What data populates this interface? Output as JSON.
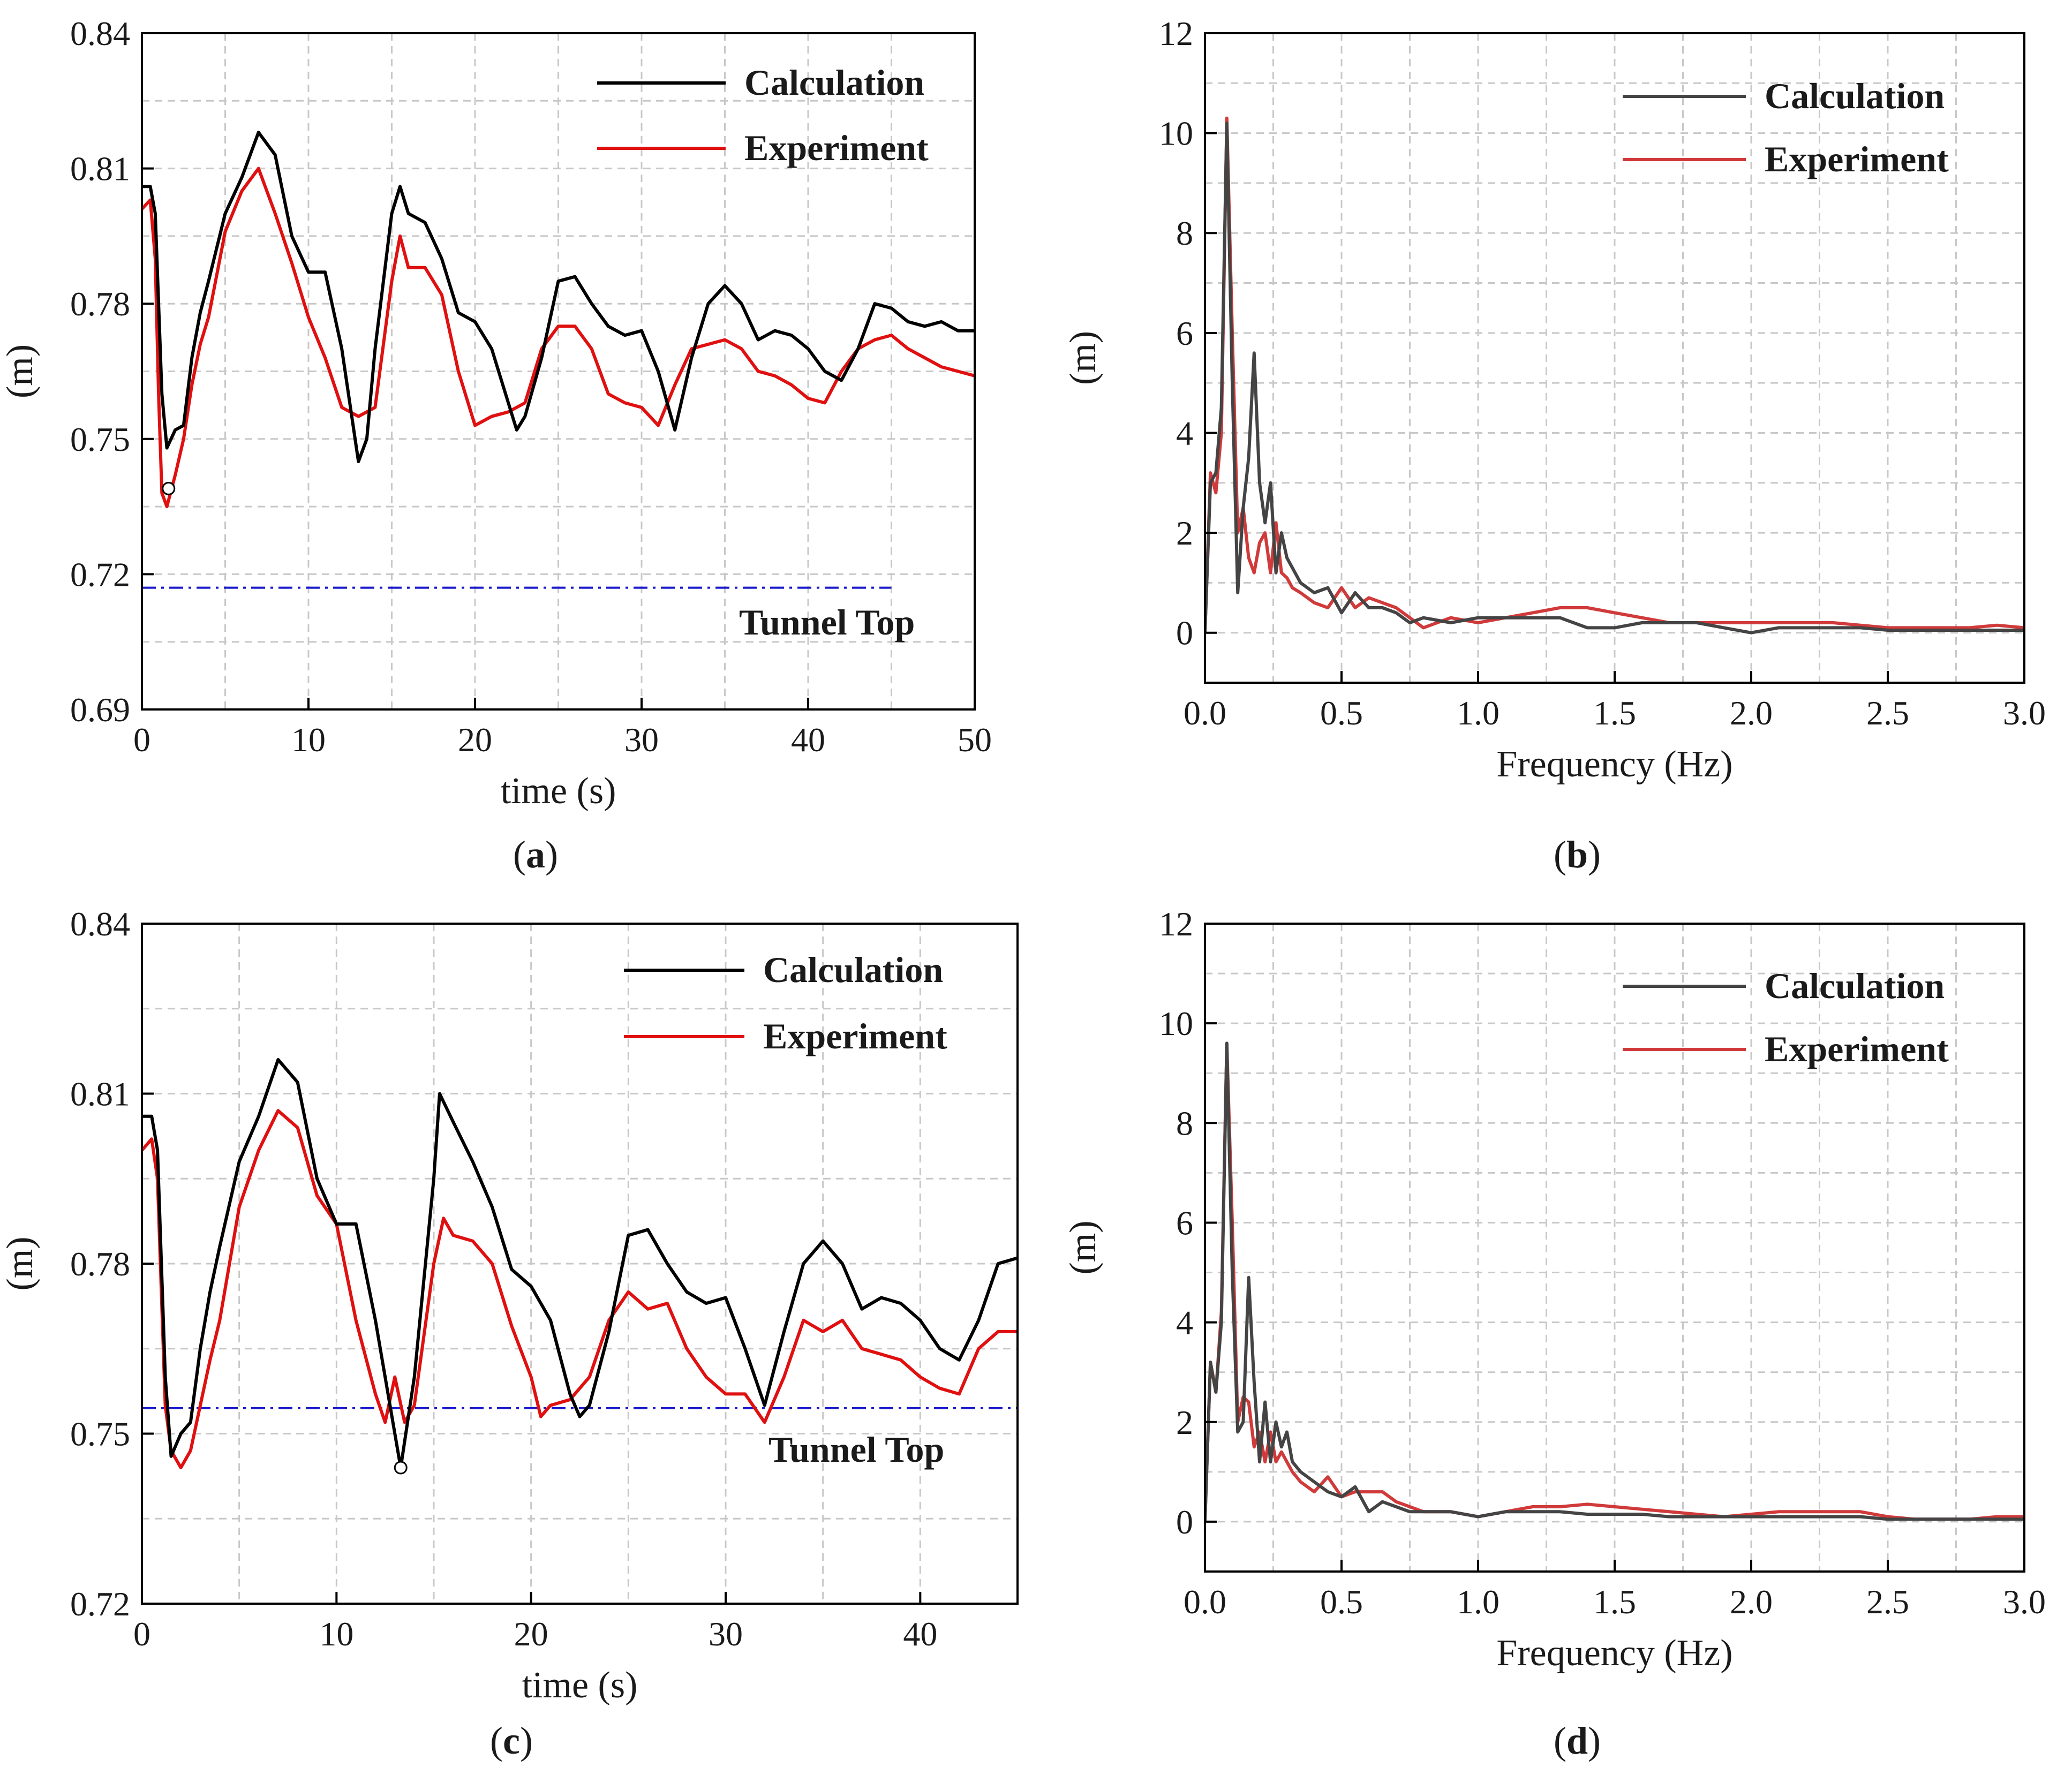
{
  "chart_data": [
    {
      "panel": "a",
      "type": "line",
      "caption_label": "a",
      "xlabel": "time (s)",
      "ylabel": "(m)",
      "xlim": [
        0,
        50
      ],
      "ylim": [
        0.69,
        0.84
      ],
      "xticks": [
        0,
        10,
        20,
        30,
        40,
        50
      ],
      "yticks": [
        0.69,
        0.72,
        0.75,
        0.78,
        0.81,
        0.84
      ],
      "ytick_labels": [
        "0.69",
        "0.72",
        "0.75",
        "0.78",
        "0.81",
        "0.84"
      ],
      "grid": true,
      "legend_position": "top-right",
      "annotation": {
        "text": "Tunnel Top",
        "y": 0.717,
        "x_range": [
          0,
          45
        ],
        "color": "#1a1acc"
      },
      "marker": {
        "x": 1.6,
        "y": 0.739
      },
      "series": [
        {
          "name": "Calculation",
          "color": "#000000",
          "x": [
            0,
            0.5,
            0.8,
            1.2,
            1.5,
            2,
            2.5,
            3,
            3.5,
            4,
            5,
            6,
            7,
            8,
            9,
            10,
            11,
            12,
            13,
            13.5,
            14,
            15,
            15.5,
            16,
            17,
            18,
            19,
            20,
            21,
            22,
            22.5,
            23,
            24,
            25,
            26,
            27,
            28,
            29,
            30,
            31,
            32,
            33,
            34,
            35,
            36,
            37,
            38,
            39,
            40,
            41,
            42,
            43,
            44,
            45,
            46,
            47,
            48,
            49,
            50
          ],
          "y": [
            0.806,
            0.806,
            0.8,
            0.76,
            0.748,
            0.752,
            0.753,
            0.768,
            0.778,
            0.785,
            0.8,
            0.808,
            0.818,
            0.813,
            0.795,
            0.787,
            0.787,
            0.77,
            0.745,
            0.75,
            0.77,
            0.8,
            0.806,
            0.8,
            0.798,
            0.79,
            0.778,
            0.776,
            0.77,
            0.758,
            0.752,
            0.755,
            0.768,
            0.785,
            0.786,
            0.78,
            0.775,
            0.773,
            0.774,
            0.765,
            0.752,
            0.768,
            0.78,
            0.784,
            0.78,
            0.772,
            0.774,
            0.773,
            0.77,
            0.765,
            0.763,
            0.77,
            0.78,
            0.779,
            0.776,
            0.775,
            0.776,
            0.774,
            0.774
          ]
        },
        {
          "name": "Experiment",
          "color": "#e01010",
          "x": [
            0,
            0.5,
            0.8,
            1,
            1.2,
            1.5,
            2,
            2.5,
            3,
            3.5,
            4,
            5,
            6,
            7,
            8,
            9,
            10,
            11,
            12,
            13,
            14,
            15,
            15.5,
            16,
            17,
            18,
            19,
            20,
            21,
            22,
            23,
            24,
            25,
            26,
            27,
            28,
            29,
            30,
            31,
            32,
            33,
            34,
            35,
            36,
            37,
            38,
            39,
            40,
            41,
            42,
            43,
            44,
            45,
            46,
            47,
            48,
            49,
            50
          ],
          "y": [
            0.801,
            0.803,
            0.79,
            0.76,
            0.738,
            0.735,
            0.742,
            0.75,
            0.762,
            0.771,
            0.777,
            0.796,
            0.805,
            0.81,
            0.8,
            0.789,
            0.777,
            0.768,
            0.757,
            0.755,
            0.757,
            0.785,
            0.795,
            0.788,
            0.788,
            0.782,
            0.765,
            0.753,
            0.755,
            0.756,
            0.758,
            0.77,
            0.775,
            0.775,
            0.77,
            0.76,
            0.758,
            0.757,
            0.753,
            0.762,
            0.77,
            0.771,
            0.772,
            0.77,
            0.765,
            0.764,
            0.762,
            0.759,
            0.758,
            0.765,
            0.77,
            0.772,
            0.773,
            0.77,
            0.768,
            0.766,
            0.765,
            0.764
          ]
        }
      ]
    },
    {
      "panel": "b",
      "type": "line",
      "caption_label": "b",
      "xlabel": "Frequency (Hz)",
      "ylabel": "(m)",
      "xlim": [
        0,
        3
      ],
      "ylim": [
        -1,
        12
      ],
      "xticks": [
        0,
        0.5,
        1,
        1.5,
        2,
        2.5,
        3
      ],
      "xtick_labels": [
        "0.0",
        "0.5",
        "1.0",
        "1.5",
        "2.0",
        "2.5",
        "3.0"
      ],
      "yticks": [
        0,
        2,
        4,
        6,
        8,
        10,
        12
      ],
      "grid": true,
      "legend_position": "top-right",
      "series": [
        {
          "name": "Calculation",
          "color": "#444444",
          "x": [
            0,
            0.02,
            0.04,
            0.06,
            0.08,
            0.1,
            0.12,
            0.14,
            0.16,
            0.18,
            0.2,
            0.22,
            0.24,
            0.26,
            0.28,
            0.3,
            0.32,
            0.35,
            0.4,
            0.45,
            0.5,
            0.55,
            0.6,
            0.65,
            0.7,
            0.75,
            0.8,
            0.9,
            1.0,
            1.1,
            1.2,
            1.3,
            1.4,
            1.5,
            1.6,
            1.7,
            1.8,
            1.9,
            2.0,
            2.1,
            2.2,
            2.3,
            2.4,
            2.5,
            2.6,
            2.7,
            2.8,
            2.9,
            3.0
          ],
          "y": [
            0,
            3.0,
            3.2,
            4.5,
            10.2,
            5.0,
            0.8,
            2.5,
            3.5,
            5.6,
            3.0,
            2.2,
            3.0,
            1.2,
            2.0,
            1.5,
            1.3,
            1.0,
            0.8,
            0.9,
            0.4,
            0.8,
            0.5,
            0.5,
            0.4,
            0.2,
            0.3,
            0.2,
            0.3,
            0.3,
            0.3,
            0.3,
            0.1,
            0.1,
            0.2,
            0.2,
            0.2,
            0.1,
            0.0,
            0.1,
            0.1,
            0.1,
            0.1,
            0.05,
            0.05,
            0.05,
            0.05,
            0.05,
            0.05
          ]
        },
        {
          "name": "Experiment",
          "color": "#d03a3a",
          "x": [
            0,
            0.02,
            0.04,
            0.06,
            0.08,
            0.1,
            0.12,
            0.14,
            0.16,
            0.18,
            0.2,
            0.22,
            0.24,
            0.26,
            0.28,
            0.3,
            0.32,
            0.35,
            0.4,
            0.45,
            0.5,
            0.55,
            0.6,
            0.65,
            0.7,
            0.75,
            0.8,
            0.9,
            1.0,
            1.1,
            1.2,
            1.3,
            1.4,
            1.5,
            1.6,
            1.7,
            1.8,
            1.9,
            2.0,
            2.1,
            2.2,
            2.3,
            2.4,
            2.5,
            2.6,
            2.7,
            2.8,
            2.9,
            3.0
          ],
          "y": [
            0,
            3.2,
            2.8,
            4.0,
            10.3,
            6.0,
            2.0,
            2.5,
            1.5,
            1.2,
            1.8,
            2.0,
            1.2,
            2.2,
            1.2,
            1.1,
            0.9,
            0.8,
            0.6,
            0.5,
            0.9,
            0.5,
            0.7,
            0.6,
            0.5,
            0.3,
            0.1,
            0.3,
            0.2,
            0.3,
            0.4,
            0.5,
            0.5,
            0.4,
            0.3,
            0.2,
            0.2,
            0.2,
            0.2,
            0.2,
            0.2,
            0.2,
            0.15,
            0.1,
            0.1,
            0.1,
            0.1,
            0.15,
            0.1
          ]
        }
      ]
    },
    {
      "panel": "c",
      "type": "line",
      "caption_label": "c",
      "xlabel": "time (s)",
      "ylabel": "(m)",
      "xlim": [
        0,
        45
      ],
      "ylim": [
        0.72,
        0.84
      ],
      "xticks": [
        0,
        10,
        20,
        30,
        40
      ],
      "yticks": [
        0.72,
        0.75,
        0.78,
        0.81,
        0.84
      ],
      "ytick_labels": [
        "0.72",
        "0.75",
        "0.78",
        "0.81",
        "0.84"
      ],
      "grid": true,
      "legend_position": "top-right",
      "annotation": {
        "text": "Tunnel Top",
        "y": 0.7545,
        "x_range": [
          0,
          45
        ],
        "color": "#1a1acc"
      },
      "marker": {
        "x": 13.3,
        "y": 0.744
      },
      "series": [
        {
          "name": "Calculation",
          "color": "#000000",
          "x": [
            0,
            0.5,
            0.8,
            1.2,
            1.5,
            2,
            2.5,
            3,
            3.5,
            4,
            5,
            6,
            7,
            8,
            9,
            10,
            11,
            12,
            13,
            13.3,
            14,
            15,
            15.3,
            16,
            17,
            18,
            19,
            20,
            21,
            22,
            22.5,
            23,
            24,
            25,
            26,
            27,
            28,
            29,
            30,
            31,
            32,
            33,
            34,
            35,
            36,
            37,
            38,
            39,
            40,
            41,
            42,
            43,
            44,
            45
          ],
          "y": [
            0.806,
            0.806,
            0.8,
            0.76,
            0.746,
            0.75,
            0.752,
            0.765,
            0.775,
            0.783,
            0.798,
            0.806,
            0.816,
            0.812,
            0.795,
            0.787,
            0.787,
            0.77,
            0.75,
            0.744,
            0.76,
            0.795,
            0.81,
            0.805,
            0.798,
            0.79,
            0.779,
            0.776,
            0.77,
            0.757,
            0.753,
            0.755,
            0.768,
            0.785,
            0.786,
            0.78,
            0.775,
            0.773,
            0.774,
            0.765,
            0.755,
            0.768,
            0.78,
            0.784,
            0.78,
            0.772,
            0.774,
            0.773,
            0.77,
            0.765,
            0.763,
            0.77,
            0.78,
            0.781
          ]
        },
        {
          "name": "Experiment",
          "color": "#e01010",
          "x": [
            0,
            0.5,
            0.8,
            1,
            1.2,
            1.5,
            2,
            2.5,
            3,
            3.5,
            4,
            5,
            6,
            7,
            8,
            9,
            10,
            11,
            12,
            12.5,
            13,
            13.5,
            14,
            15,
            15.5,
            16,
            17,
            18,
            19,
            20,
            20.5,
            21,
            22,
            23,
            24,
            25,
            26,
            27,
            28,
            29,
            30,
            31,
            32,
            33,
            34,
            35,
            36,
            37,
            38,
            39,
            40,
            41,
            42,
            43,
            44,
            45
          ],
          "y": [
            0.8,
            0.802,
            0.795,
            0.775,
            0.755,
            0.747,
            0.744,
            0.747,
            0.755,
            0.763,
            0.77,
            0.79,
            0.8,
            0.807,
            0.804,
            0.792,
            0.787,
            0.77,
            0.757,
            0.752,
            0.76,
            0.752,
            0.755,
            0.78,
            0.788,
            0.785,
            0.784,
            0.78,
            0.769,
            0.76,
            0.753,
            0.755,
            0.756,
            0.76,
            0.77,
            0.775,
            0.772,
            0.773,
            0.765,
            0.76,
            0.757,
            0.757,
            0.752,
            0.76,
            0.77,
            0.768,
            0.77,
            0.765,
            0.764,
            0.763,
            0.76,
            0.758,
            0.757,
            0.765,
            0.768,
            0.768
          ]
        }
      ]
    },
    {
      "panel": "d",
      "type": "line",
      "caption_label": "d",
      "xlabel": "Frequency (Hz)",
      "ylabel": "(m)",
      "xlim": [
        0,
        3
      ],
      "ylim": [
        -1,
        12
      ],
      "xticks": [
        0,
        0.5,
        1,
        1.5,
        2,
        2.5,
        3
      ],
      "xtick_labels": [
        "0.0",
        "0.5",
        "1.0",
        "1.5",
        "2.0",
        "2.5",
        "3.0"
      ],
      "yticks": [
        0,
        2,
        4,
        6,
        8,
        10,
        12
      ],
      "grid": true,
      "legend_position": "top-right",
      "series": [
        {
          "name": "Calculation",
          "color": "#444444",
          "x": [
            0,
            0.02,
            0.04,
            0.06,
            0.08,
            0.1,
            0.12,
            0.14,
            0.16,
            0.18,
            0.2,
            0.22,
            0.24,
            0.26,
            0.28,
            0.3,
            0.32,
            0.35,
            0.4,
            0.45,
            0.5,
            0.55,
            0.6,
            0.65,
            0.7,
            0.75,
            0.8,
            0.9,
            1.0,
            1.1,
            1.2,
            1.3,
            1.4,
            1.5,
            1.6,
            1.7,
            1.8,
            1.9,
            2.0,
            2.1,
            2.2,
            2.3,
            2.4,
            2.5,
            2.6,
            2.7,
            2.8,
            2.9,
            3.0
          ],
          "y": [
            0,
            3.2,
            2.6,
            4.0,
            9.6,
            5.0,
            1.8,
            2.0,
            4.9,
            2.8,
            1.2,
            2.4,
            1.2,
            2.0,
            1.5,
            1.8,
            1.2,
            1.0,
            0.8,
            0.6,
            0.5,
            0.7,
            0.2,
            0.4,
            0.3,
            0.2,
            0.2,
            0.2,
            0.1,
            0.2,
            0.2,
            0.2,
            0.15,
            0.15,
            0.15,
            0.1,
            0.1,
            0.1,
            0.1,
            0.1,
            0.1,
            0.1,
            0.1,
            0.05,
            0.05,
            0.05,
            0.05,
            0.05,
            0.05
          ]
        },
        {
          "name": "Experiment",
          "color": "#d03a3a",
          "x": [
            0,
            0.02,
            0.04,
            0.06,
            0.08,
            0.1,
            0.12,
            0.14,
            0.16,
            0.18,
            0.2,
            0.22,
            0.24,
            0.26,
            0.28,
            0.3,
            0.32,
            0.35,
            0.4,
            0.45,
            0.5,
            0.55,
            0.6,
            0.65,
            0.7,
            0.75,
            0.8,
            0.9,
            1.0,
            1.1,
            1.2,
            1.3,
            1.4,
            1.5,
            1.6,
            1.7,
            1.8,
            1.9,
            2.0,
            2.1,
            2.2,
            2.3,
            2.4,
            2.5,
            2.6,
            2.7,
            2.8,
            2.9,
            3.0
          ],
          "y": [
            0,
            3.2,
            2.6,
            4.2,
            9.6,
            6.0,
            2.0,
            2.5,
            2.4,
            1.5,
            1.8,
            1.2,
            1.8,
            1.2,
            1.4,
            1.2,
            1.0,
            0.8,
            0.6,
            0.9,
            0.5,
            0.6,
            0.6,
            0.6,
            0.4,
            0.3,
            0.2,
            0.2,
            0.1,
            0.2,
            0.3,
            0.3,
            0.35,
            0.3,
            0.25,
            0.2,
            0.15,
            0.1,
            0.15,
            0.2,
            0.2,
            0.2,
            0.2,
            0.1,
            0.05,
            0.05,
            0.05,
            0.1,
            0.1
          ]
        }
      ]
    }
  ]
}
